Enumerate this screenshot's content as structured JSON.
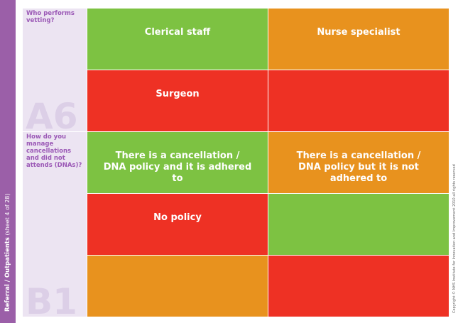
{
  "sidebar": {
    "section": "Referral / Outpatients",
    "sheet": "(sheet 4 of 28)"
  },
  "copyright": "Copyright © NHS Institute for Innovation and Improvement 2010 all rights reserved",
  "sections": [
    {
      "code": "A6",
      "question": "Who performs vetting?",
      "rows": [
        [
          {
            "text": "Clerical staff",
            "color": "#7dc242"
          },
          {
            "text": "Nurse specialist",
            "color": "#e8921e"
          }
        ],
        [
          {
            "text": "Surgeon",
            "color": "#ee3124"
          },
          {
            "color": "#ee3124"
          }
        ]
      ]
    },
    {
      "code": "B1",
      "question": "How do you manage cancellations and did not attends (DNAs)?",
      "rows": [
        [
          {
            "text": "There is a cancellation / DNA policy and it is adhered to",
            "color": "#7dc242"
          },
          {
            "text": "There is a cancellation / DNA policy but it is not adhered to",
            "color": "#e8921e"
          }
        ],
        [
          {
            "text": "No policy",
            "color": "#ee3124"
          },
          {
            "color": "#7dc242"
          }
        ],
        [
          {
            "color": "#e8921e"
          },
          {
            "color": "#ee3124"
          }
        ]
      ]
    }
  ]
}
